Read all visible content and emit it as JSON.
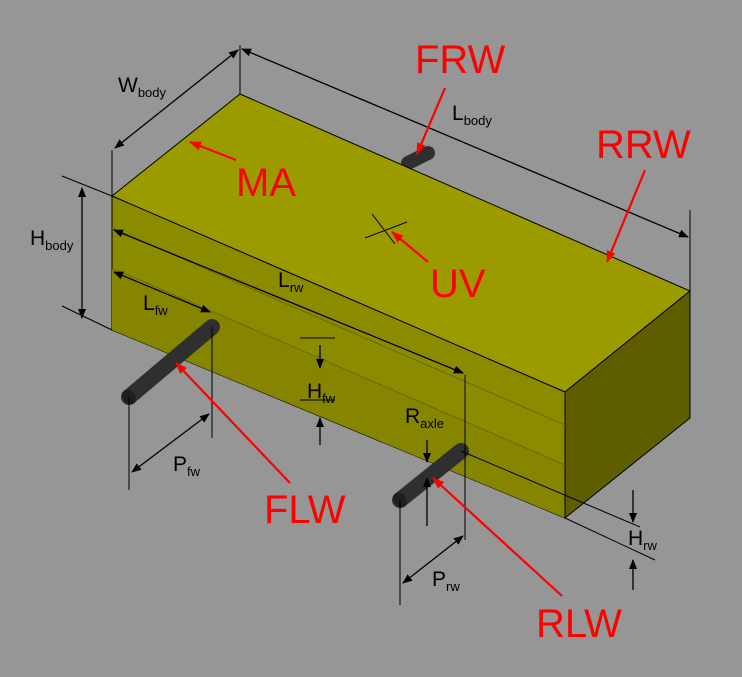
{
  "colors": {
    "background": "#969696",
    "body_top": "#9b9b00",
    "body_front": "#8b8b00",
    "body_front_lower": "#858500",
    "body_right_face": "#5e5e00",
    "edge": "#000000",
    "wheel": "#2f2f2f",
    "dimension_line": "#000000",
    "callout": "#ff0000"
  },
  "dimensions": {
    "w_body": {
      "main": "W",
      "sub": "body"
    },
    "l_body": {
      "main": "L",
      "sub": "body"
    },
    "h_body": {
      "main": "H",
      "sub": "body"
    },
    "l_rw": {
      "main": "L",
      "sub": "rw"
    },
    "l_fw": {
      "main": "L",
      "sub": "fw"
    },
    "h_fw": {
      "main": "H",
      "sub": "fw"
    },
    "r_axle": {
      "main": "R",
      "sub": "axle"
    },
    "p_fw": {
      "main": "P",
      "sub": "fw"
    },
    "p_rw": {
      "main": "P",
      "sub": "rw"
    },
    "h_rw": {
      "main": "H",
      "sub": "rw"
    }
  },
  "callouts": {
    "frw": "FRW",
    "rrw": "RRW",
    "ma": "MA",
    "uv": "UV",
    "flw": "FLW",
    "rlw": "RLW"
  },
  "icons": {
    "wheels": "wheel-cylinder-icon",
    "center": "crosshair-icon"
  }
}
